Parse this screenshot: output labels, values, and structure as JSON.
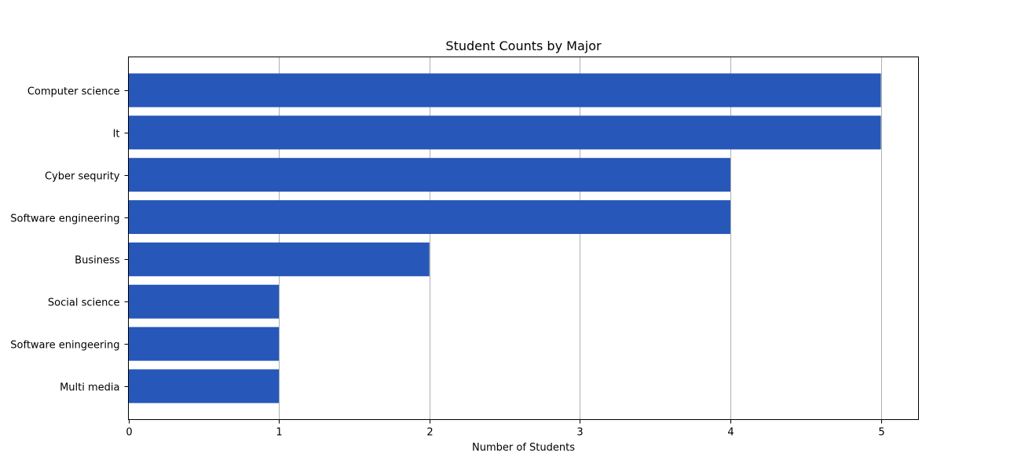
{
  "chart_data": {
    "type": "bar",
    "orientation": "horizontal",
    "title": "Student Counts by Major",
    "xlabel": "Number of Students",
    "ylabel": "",
    "categories": [
      "Computer science",
      "It",
      "Cyber sequrity",
      "Software engineering",
      "Business",
      "Social science",
      "Software eningeering",
      "Multi media"
    ],
    "values": [
      5,
      5,
      4,
      4,
      2,
      1,
      1,
      1
    ],
    "xlim": [
      0,
      5.25
    ],
    "xticks": [
      0,
      1,
      2,
      3,
      4,
      5
    ],
    "grid": "vertical",
    "bar_color": "#2757b8",
    "grid_color": "#b0b0b0"
  }
}
